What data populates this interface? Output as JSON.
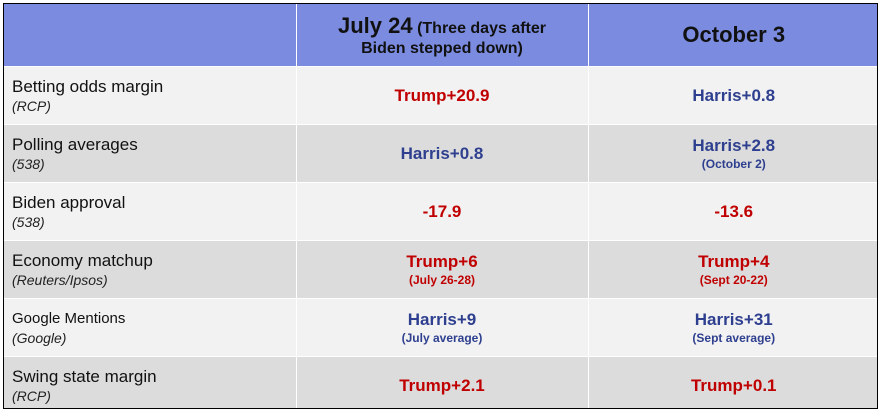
{
  "header": {
    "col2_main": "July 24",
    "col2_paren_line1": "(Three days after",
    "col2_paren_line2": "Biden stepped down)",
    "col3": "October 3"
  },
  "rows": [
    {
      "label": "Betting odds margin",
      "source": "(RCP)",
      "july": {
        "value": "Trump+20.9",
        "sub": "",
        "color": "red"
      },
      "oct": {
        "value": "Harris+0.8",
        "sub": "",
        "color": "blue"
      }
    },
    {
      "label": "Polling averages",
      "source": "(538)",
      "july": {
        "value": "Harris+0.8",
        "sub": "",
        "color": "blue"
      },
      "oct": {
        "value": "Harris+2.8",
        "sub": "(October 2)",
        "color": "blue"
      }
    },
    {
      "label": "Biden approval",
      "source": "(538)",
      "july": {
        "value": "-17.9",
        "sub": "",
        "color": "red"
      },
      "oct": {
        "value": "-13.6",
        "sub": "",
        "color": "red"
      }
    },
    {
      "label": "Economy matchup",
      "source": "(Reuters/Ipsos)",
      "july": {
        "value": "Trump+6",
        "sub": "(July 26-28)",
        "color": "red"
      },
      "oct": {
        "value": "Trump+4",
        "sub": "(Sept 20-22)",
        "color": "red"
      }
    },
    {
      "label": "Google Mentions",
      "source": "(Google)",
      "july": {
        "value": "Harris+9",
        "sub": "(July average)",
        "color": "blue"
      },
      "oct": {
        "value": "Harris+31",
        "sub": "(Sept average)",
        "color": "blue"
      }
    },
    {
      "label": "Swing state margin",
      "source": "(RCP)",
      "july": {
        "value": "Trump+2.1",
        "sub": "",
        "color": "red"
      },
      "oct": {
        "value": "Trump+0.1",
        "sub": "",
        "color": "red"
      }
    }
  ]
}
